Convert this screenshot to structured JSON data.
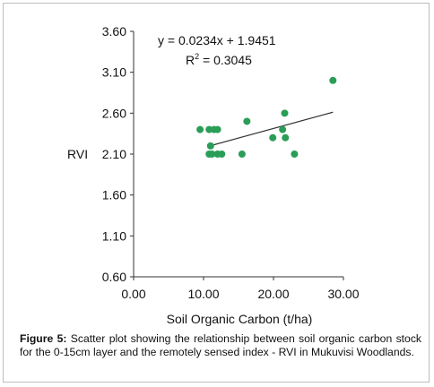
{
  "chart_data": {
    "type": "scatter",
    "xlabel": "Soil Organic Carbon (t/ha)",
    "ylabel": "RVI",
    "xlim": [
      0,
      30
    ],
    "ylim": [
      0.6,
      3.6
    ],
    "x_ticks": [
      "0.00",
      "10.00",
      "20.00",
      "30.00"
    ],
    "y_ticks": [
      "0.60",
      "1.10",
      "1.60",
      "2.10",
      "2.60",
      "3.10",
      "3.60"
    ],
    "grid": false,
    "marker_color": "#2a9d57",
    "trendline_color": "#333333",
    "points": [
      {
        "x": 9.5,
        "y": 2.4
      },
      {
        "x": 10.8,
        "y": 2.4
      },
      {
        "x": 11.5,
        "y": 2.4
      },
      {
        "x": 12.0,
        "y": 2.4
      },
      {
        "x": 11.0,
        "y": 2.2
      },
      {
        "x": 10.8,
        "y": 2.1
      },
      {
        "x": 11.2,
        "y": 2.1
      },
      {
        "x": 12.0,
        "y": 2.1
      },
      {
        "x": 12.6,
        "y": 2.1
      },
      {
        "x": 15.5,
        "y": 2.1
      },
      {
        "x": 16.2,
        "y": 2.5
      },
      {
        "x": 19.9,
        "y": 2.3
      },
      {
        "x": 21.3,
        "y": 2.4
      },
      {
        "x": 21.6,
        "y": 2.6
      },
      {
        "x": 21.7,
        "y": 2.3
      },
      {
        "x": 23.0,
        "y": 2.1
      },
      {
        "x": 28.5,
        "y": 3.0
      }
    ],
    "trendline": {
      "slope": 0.0234,
      "intercept": 1.9451,
      "x_range": [
        11.0,
        28.5
      ]
    },
    "equation_text": "y = 0.0234x + 1.9451",
    "r2_label": "R",
    "r2_exponent": "2",
    "r2_value_text": " = 0.3045"
  },
  "caption": {
    "label": "Figure 5:",
    "text": " Scatter plot showing the relationship between soil organic carbon stock for the 0-15cm layer and the remotely sensed index - RVI in Mukuvisi Woodlands."
  }
}
